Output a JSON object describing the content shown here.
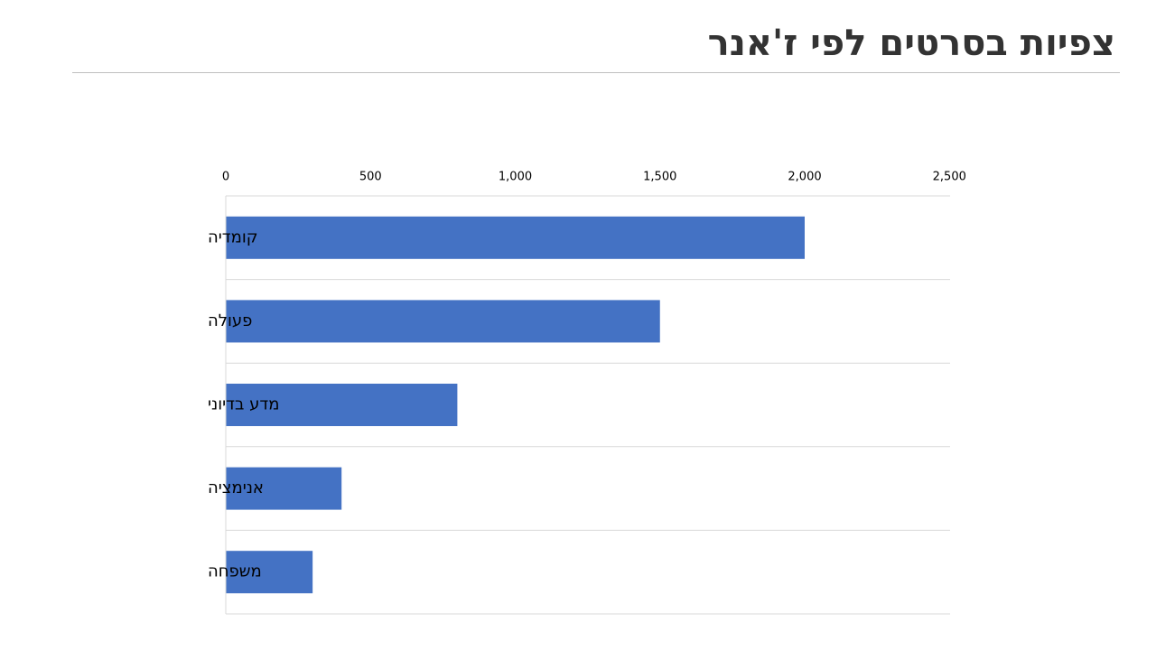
{
  "slide": {
    "title": "צפיות בסרטים לפי ז'אנר"
  },
  "colors": {
    "bar": "#4472C4",
    "grid": "#d9d9d9",
    "title": "#333333",
    "rule": "#bfbfbf"
  },
  "chart_data": {
    "type": "bar",
    "orientation": "horizontal",
    "categories": [
      "קומדיה",
      "פעולה",
      "מדע בדיוני",
      "אנימציה",
      "משפחה"
    ],
    "values": [
      2000,
      1500,
      800,
      400,
      300
    ],
    "xlim": [
      0,
      2500
    ],
    "ticks": [
      {
        "value": 0,
        "label": "0"
      },
      {
        "value": 500,
        "label": "500"
      },
      {
        "value": 1000,
        "label": "1,000"
      },
      {
        "value": 1500,
        "label": "1,500"
      },
      {
        "value": 2000,
        "label": "2,000"
      },
      {
        "value": 2500,
        "label": "2,500"
      }
    ],
    "axis_position": "top",
    "grid": true,
    "legend": "none"
  }
}
